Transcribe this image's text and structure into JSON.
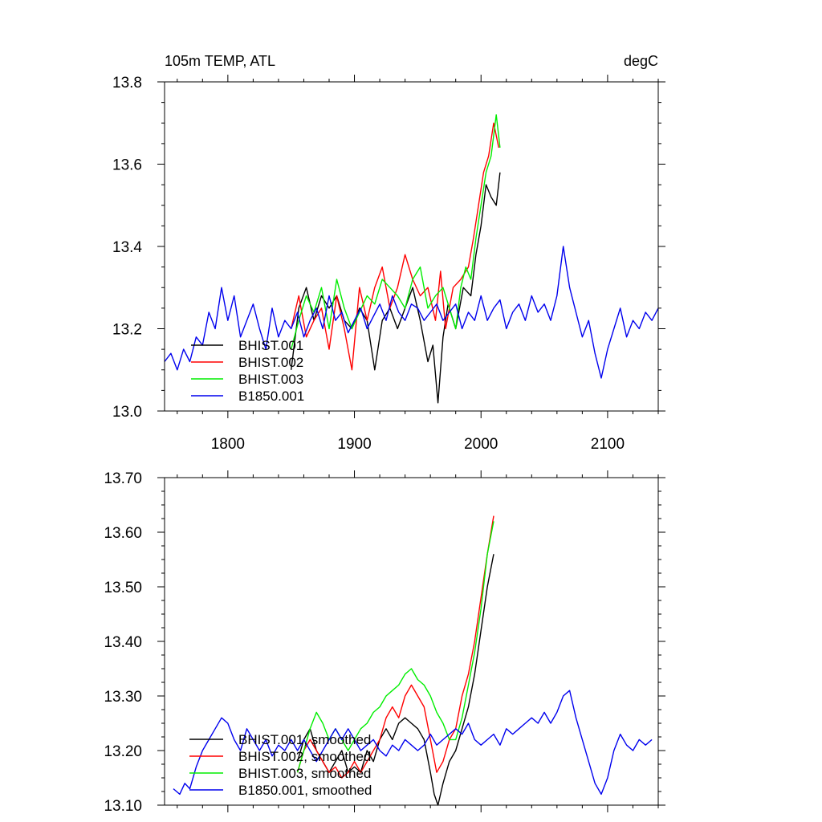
{
  "chart_data": [
    {
      "type": "line",
      "title_left": "105m TEMP, ATL",
      "title_right": "degC",
      "xlim": [
        1750,
        2140
      ],
      "ylim": [
        13.0,
        13.8
      ],
      "xticks": [
        1800,
        1900,
        2000,
        2100
      ],
      "xtick_labels": [
        "1800",
        "1900",
        "2000",
        "2100"
      ],
      "yticks": [
        13.0,
        13.2,
        13.4,
        13.6,
        13.8
      ],
      "ytick_labels": [
        "13.0",
        "13.2",
        "13.4",
        "13.6",
        "13.8"
      ],
      "legend": [
        "BHIST.001",
        "BHIST.002",
        "BHIST.003",
        "B1850.001"
      ],
      "series": [
        {
          "name": "BHIST.001",
          "color": "#000000",
          "x": [
            1850,
            1856,
            1862,
            1868,
            1874,
            1880,
            1886,
            1892,
            1898,
            1904,
            1910,
            1916,
            1922,
            1928,
            1934,
            1940,
            1946,
            1952,
            1958,
            1962,
            1966,
            1970,
            1974,
            1980,
            1986,
            1992,
            1996,
            2000,
            2004,
            2008,
            2012,
            2015
          ],
          "y": [
            13.1,
            13.25,
            13.3,
            13.22,
            13.28,
            13.25,
            13.28,
            13.22,
            13.2,
            13.25,
            13.22,
            13.1,
            13.22,
            13.25,
            13.2,
            13.25,
            13.3,
            13.22,
            13.12,
            13.16,
            13.02,
            13.18,
            13.26,
            13.2,
            13.3,
            13.28,
            13.38,
            13.45,
            13.55,
            13.52,
            13.5,
            13.58
          ]
        },
        {
          "name": "BHIST.002",
          "color": "#ff0000",
          "x": [
            1850,
            1856,
            1862,
            1868,
            1874,
            1880,
            1886,
            1892,
            1898,
            1904,
            1910,
            1916,
            1922,
            1928,
            1934,
            1940,
            1946,
            1952,
            1958,
            1964,
            1968,
            1972,
            1978,
            1984,
            1990,
            1994,
            1998,
            2002,
            2006,
            2010,
            2014
          ],
          "y": [
            13.2,
            13.28,
            13.18,
            13.22,
            13.25,
            13.15,
            13.28,
            13.2,
            13.1,
            13.3,
            13.22,
            13.3,
            13.35,
            13.25,
            13.3,
            13.38,
            13.32,
            13.28,
            13.3,
            13.22,
            13.34,
            13.2,
            13.3,
            13.32,
            13.35,
            13.42,
            13.5,
            13.58,
            13.62,
            13.7,
            13.64
          ]
        },
        {
          "name": "BHIST.003",
          "color": "#00ee00",
          "x": [
            1850,
            1856,
            1862,
            1868,
            1874,
            1880,
            1886,
            1892,
            1898,
            1904,
            1910,
            1916,
            1922,
            1928,
            1934,
            1940,
            1946,
            1952,
            1958,
            1964,
            1970,
            1976,
            1980,
            1984,
            1988,
            1992,
            1996,
            2000,
            2004,
            2008,
            2012,
            2015
          ],
          "y": [
            13.15,
            13.22,
            13.28,
            13.24,
            13.3,
            13.2,
            13.32,
            13.25,
            13.2,
            13.24,
            13.28,
            13.26,
            13.32,
            13.3,
            13.28,
            13.25,
            13.32,
            13.35,
            13.25,
            13.28,
            13.3,
            13.24,
            13.2,
            13.3,
            13.35,
            13.32,
            13.42,
            13.5,
            13.58,
            13.62,
            13.72,
            13.64
          ]
        },
        {
          "name": "B1850.001",
          "color": "#0000ee",
          "x": [
            1750,
            1755,
            1760,
            1765,
            1770,
            1775,
            1780,
            1785,
            1790,
            1795,
            1800,
            1805,
            1810,
            1815,
            1820,
            1825,
            1830,
            1835,
            1840,
            1845,
            1850,
            1855,
            1860,
            1865,
            1870,
            1875,
            1880,
            1885,
            1890,
            1895,
            1900,
            1905,
            1910,
            1915,
            1920,
            1925,
            1930,
            1935,
            1940,
            1945,
            1950,
            1955,
            1960,
            1965,
            1970,
            1975,
            1980,
            1985,
            1990,
            1995,
            2000,
            2005,
            2010,
            2015,
            2020,
            2025,
            2030,
            2035,
            2040,
            2045,
            2050,
            2055,
            2060,
            2065,
            2070,
            2075,
            2080,
            2085,
            2090,
            2095,
            2100,
            2105,
            2110,
            2115,
            2120,
            2125,
            2130,
            2135,
            2140
          ],
          "y": [
            13.12,
            13.14,
            13.1,
            13.15,
            13.12,
            13.18,
            13.16,
            13.24,
            13.2,
            13.3,
            13.22,
            13.28,
            13.18,
            13.22,
            13.26,
            13.2,
            13.15,
            13.25,
            13.18,
            13.22,
            13.2,
            13.24,
            13.18,
            13.22,
            13.25,
            13.2,
            13.28,
            13.22,
            13.24,
            13.19,
            13.22,
            13.25,
            13.2,
            13.23,
            13.26,
            13.22,
            13.28,
            13.24,
            13.22,
            13.26,
            13.25,
            13.22,
            13.24,
            13.26,
            13.22,
            13.24,
            13.26,
            13.2,
            13.24,
            13.22,
            13.28,
            13.22,
            13.25,
            13.27,
            13.2,
            13.24,
            13.26,
            13.22,
            13.28,
            13.24,
            13.26,
            13.22,
            13.28,
            13.4,
            13.3,
            13.24,
            13.18,
            13.22,
            13.14,
            13.08,
            13.15,
            13.2,
            13.25,
            13.18,
            13.22,
            13.2,
            13.24,
            13.22,
            13.25
          ]
        }
      ]
    },
    {
      "type": "line",
      "title_left": "",
      "title_right": "",
      "xlim": [
        1750,
        2140
      ],
      "ylim": [
        13.1,
        13.7
      ],
      "xticks": [
        1800,
        1900,
        2000,
        2100
      ],
      "xtick_labels": [],
      "yticks": [
        13.1,
        13.2,
        13.3,
        13.4,
        13.5,
        13.6,
        13.7
      ],
      "ytick_labels": [
        "13.10",
        "13.20",
        "13.30",
        "13.40",
        "13.50",
        "13.60",
        "13.70"
      ],
      "legend": [
        "BHIST.001, smoothed",
        "BHIST.002, smoothed",
        "BHIST.003, smoothed",
        "B1850.001, smoothed"
      ],
      "series": [
        {
          "name": "BHIST.001, smoothed",
          "color": "#000000",
          "x": [
            1855,
            1860,
            1865,
            1870,
            1875,
            1880,
            1885,
            1890,
            1895,
            1900,
            1905,
            1910,
            1915,
            1920,
            1925,
            1930,
            1935,
            1940,
            1945,
            1950,
            1955,
            1960,
            1963,
            1966,
            1970,
            1975,
            1980,
            1985,
            1990,
            1995,
            2000,
            2005,
            2010
          ],
          "y": [
            13.18,
            13.22,
            13.24,
            13.2,
            13.18,
            13.16,
            13.18,
            13.2,
            13.16,
            13.17,
            13.16,
            13.2,
            13.18,
            13.22,
            13.24,
            13.22,
            13.25,
            13.26,
            13.25,
            13.24,
            13.22,
            13.16,
            13.12,
            13.1,
            13.14,
            13.18,
            13.2,
            13.24,
            13.28,
            13.34,
            13.42,
            13.5,
            13.56
          ]
        },
        {
          "name": "BHIST.002, smoothed",
          "color": "#ff0000",
          "x": [
            1855,
            1860,
            1865,
            1870,
            1875,
            1880,
            1885,
            1890,
            1895,
            1900,
            1905,
            1910,
            1915,
            1920,
            1925,
            1930,
            1935,
            1940,
            1945,
            1950,
            1955,
            1960,
            1965,
            1970,
            1975,
            1980,
            1985,
            1990,
            1995,
            2000,
            2005,
            2010
          ],
          "y": [
            13.16,
            13.2,
            13.22,
            13.2,
            13.18,
            13.16,
            13.17,
            13.15,
            13.16,
            13.18,
            13.16,
            13.18,
            13.2,
            13.22,
            13.26,
            13.28,
            13.26,
            13.3,
            13.32,
            13.3,
            13.28,
            13.22,
            13.16,
            13.18,
            13.22,
            13.24,
            13.3,
            13.34,
            13.4,
            13.48,
            13.56,
            13.63
          ]
        },
        {
          "name": "BHIST.003, smoothed",
          "color": "#00ee00",
          "x": [
            1855,
            1860,
            1865,
            1870,
            1875,
            1880,
            1885,
            1890,
            1895,
            1900,
            1905,
            1910,
            1915,
            1920,
            1925,
            1930,
            1935,
            1940,
            1945,
            1950,
            1955,
            1960,
            1965,
            1970,
            1975,
            1980,
            1985,
            1990,
            1995,
            2000,
            2005,
            2010
          ],
          "y": [
            13.16,
            13.2,
            13.24,
            13.27,
            13.25,
            13.22,
            13.24,
            13.22,
            13.2,
            13.22,
            13.24,
            13.25,
            13.27,
            13.28,
            13.3,
            13.31,
            13.32,
            13.34,
            13.35,
            13.33,
            13.32,
            13.3,
            13.27,
            13.25,
            13.22,
            13.22,
            13.26,
            13.32,
            13.38,
            13.46,
            13.56,
            13.62
          ]
        },
        {
          "name": "B1850.001, smoothed",
          "color": "#0000ee",
          "x": [
            1757,
            1762,
            1766,
            1770,
            1775,
            1780,
            1785,
            1790,
            1795,
            1800,
            1805,
            1810,
            1815,
            1820,
            1825,
            1830,
            1835,
            1840,
            1845,
            1850,
            1855,
            1860,
            1865,
            1870,
            1875,
            1880,
            1885,
            1890,
            1895,
            1900,
            1905,
            1910,
            1915,
            1920,
            1925,
            1930,
            1935,
            1940,
            1945,
            1950,
            1955,
            1960,
            1965,
            1970,
            1975,
            1980,
            1985,
            1990,
            1995,
            2000,
            2005,
            2010,
            2015,
            2020,
            2025,
            2030,
            2035,
            2040,
            2045,
            2050,
            2055,
            2060,
            2065,
            2070,
            2075,
            2080,
            2085,
            2090,
            2095,
            2100,
            2105,
            2110,
            2115,
            2120,
            2125,
            2130,
            2135
          ],
          "y": [
            13.13,
            13.12,
            13.14,
            13.13,
            13.17,
            13.2,
            13.22,
            13.24,
            13.26,
            13.25,
            13.22,
            13.2,
            13.24,
            13.22,
            13.2,
            13.22,
            13.19,
            13.21,
            13.2,
            13.22,
            13.2,
            13.22,
            13.2,
            13.18,
            13.2,
            13.22,
            13.24,
            13.22,
            13.24,
            13.22,
            13.2,
            13.21,
            13.22,
            13.2,
            13.19,
            13.21,
            13.2,
            13.22,
            13.21,
            13.2,
            13.21,
            13.23,
            13.21,
            13.22,
            13.23,
            13.24,
            13.23,
            13.25,
            13.22,
            13.21,
            13.22,
            13.23,
            13.21,
            13.24,
            13.23,
            13.24,
            13.25,
            13.26,
            13.25,
            13.27,
            13.25,
            13.27,
            13.3,
            13.31,
            13.26,
            13.22,
            13.18,
            13.14,
            13.12,
            13.15,
            13.2,
            13.23,
            13.21,
            13.2,
            13.22,
            13.21,
            13.22
          ]
        }
      ]
    }
  ]
}
